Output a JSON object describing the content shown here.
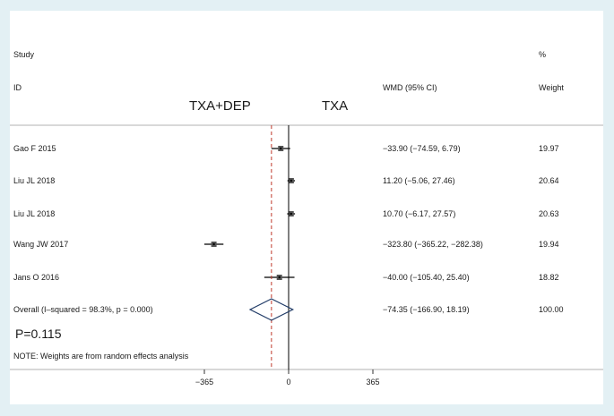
{
  "chart_data": {
    "type": "forest",
    "header": {
      "study": "Study",
      "id": "ID",
      "effect": "WMD (95% CI)",
      "percent": "%",
      "weight": "Weight"
    },
    "group_labels": {
      "left": "TXA+DEP",
      "right": "TXA"
    },
    "studies": [
      {
        "id": "Gao F 2015",
        "estimate": -33.9,
        "lower": -74.59,
        "upper": 6.79,
        "ci_text": "−33.90 (−74.59, 6.79)",
        "weight_text": "19.97"
      },
      {
        "id": "Liu JL 2018",
        "estimate": 11.2,
        "lower": -5.06,
        "upper": 27.46,
        "ci_text": "11.20 (−5.06, 27.46)",
        "weight_text": "20.64"
      },
      {
        "id": "Liu JL 2018",
        "estimate": 10.7,
        "lower": -6.17,
        "upper": 27.57,
        "ci_text": "10.70 (−6.17, 27.57)",
        "weight_text": "20.63"
      },
      {
        "id": "Wang JW 2017",
        "estimate": -323.8,
        "lower": -365.22,
        "upper": -282.38,
        "ci_text": "−323.80 (−365.22, −282.38)",
        "weight_text": "19.94"
      },
      {
        "id": "Jans O 2016",
        "estimate": -40.0,
        "lower": -105.4,
        "upper": 25.4,
        "ci_text": "−40.00 (−105.40, 25.40)",
        "weight_text": "18.82"
      }
    ],
    "overall": {
      "label": "Overall  (I–squared = 98.3%, p = 0.000)",
      "estimate": -74.35,
      "lower": -166.9,
      "upper": 18.19,
      "ci_text": "−74.35 (−166.90, 18.19)",
      "weight_text": "100.00"
    },
    "p_value_text": "P=0.115",
    "note": "NOTE: Weights are from random effects analysis",
    "x_ticks": [
      {
        "value": -365,
        "label": "−365"
      },
      {
        "value": 0,
        "label": "0"
      },
      {
        "value": 365,
        "label": "365"
      }
    ],
    "colors": {
      "reference_line": "#000000",
      "overall_line": "#c0392b",
      "marker": "#000000",
      "diamond": "#1f3a66",
      "divider": "#b0b0b0"
    }
  }
}
